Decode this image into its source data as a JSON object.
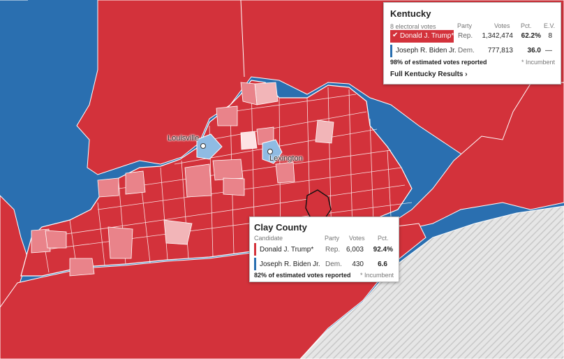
{
  "map": {
    "cities": [
      {
        "name": "Louisville"
      },
      {
        "name": "Lexington"
      }
    ],
    "colors": {
      "rep": "#d3323b",
      "rep_light": "#e9838a",
      "rep_lighter": "#f2b5b8",
      "dem": "#2a6fb0",
      "dem_light": "#8fbbe3",
      "border": "#ffffff"
    }
  },
  "state_popup": {
    "title": "Kentucky",
    "subtitle": "8 electoral votes",
    "headers": {
      "party": "Party",
      "votes": "Votes",
      "pct": "Pct.",
      "ev": "E.V."
    },
    "candidates": [
      {
        "name": "Donald J. Trump*",
        "party": "Rep.",
        "votes": "1,342,474",
        "pct": "62.2%",
        "ev": "8",
        "winner": true,
        "color": "#d3323b",
        "check_icon": "checkmark-icon"
      },
      {
        "name": "Joseph R. Biden Jr.",
        "party": "Dem.",
        "votes": "777,813",
        "pct": "36.0",
        "ev": "—",
        "winner": false,
        "color": "#2a6fb0"
      }
    ],
    "reported": "98% of estimated votes reported",
    "note": "* Incumbent",
    "link": "Full Kentucky Results ›"
  },
  "county_popup": {
    "title": "Clay County",
    "headers": {
      "candidate": "Candidate",
      "party": "Party",
      "votes": "Votes",
      "pct": "Pct."
    },
    "candidates": [
      {
        "name": "Donald J. Trump*",
        "party": "Rep.",
        "votes": "6,003",
        "pct": "92.4%",
        "color": "#d3323b"
      },
      {
        "name": "Joseph R. Biden Jr.",
        "party": "Dem.",
        "votes": "430",
        "pct": "6.6",
        "color": "#2a6fb0"
      }
    ],
    "reported": "82% of estimated votes reported",
    "note": "* Incumbent"
  }
}
